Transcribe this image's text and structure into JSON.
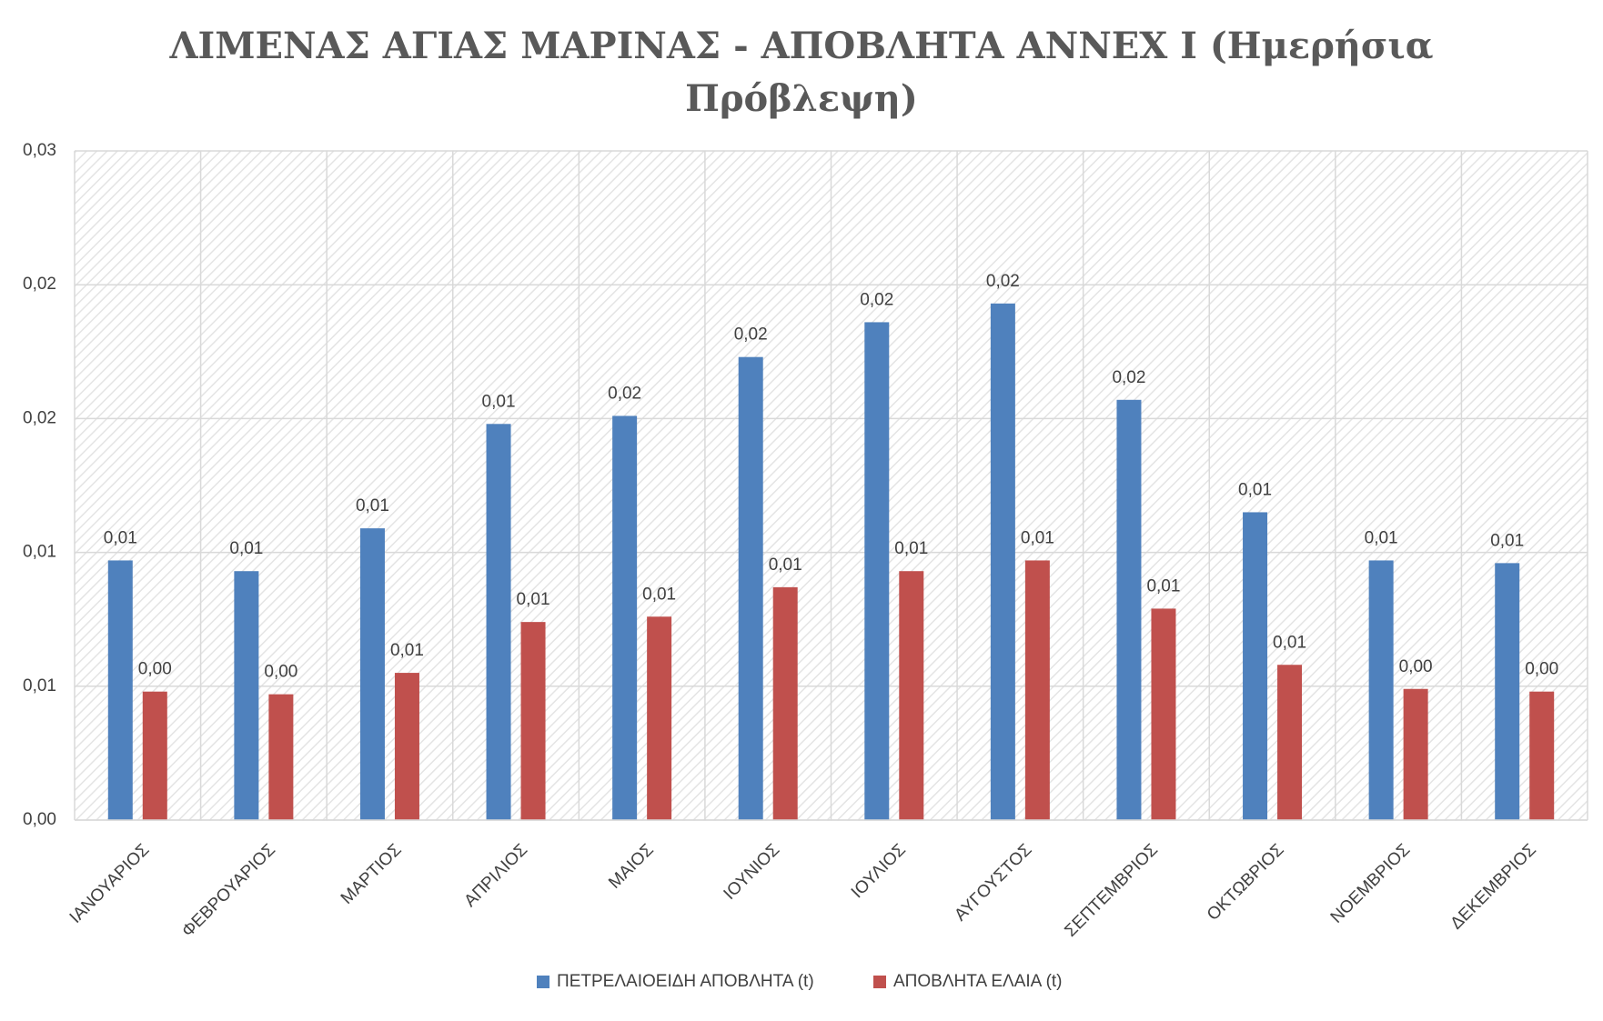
{
  "chart_data": {
    "type": "bar",
    "title": "ΛΙΜΕΝΑΣ ΑΓΙΑΣ ΜΑΡΙΝΑΣ - ΑΠΟΒΛΗΤΑ ΑΝΝΕΧ Ι (Ημερήσια Πρόβλεψη)",
    "categories": [
      "ΙΑΝΟΥΑΡΙΟΣ",
      "ΦΕΒΡΟΥΑΡΙΟΣ",
      "ΜΑΡΤΙΟΣ",
      "ΑΠΡΙΛΙΟΣ",
      "ΜΑΙΟΣ",
      "ΙΟΥΝΙΟΣ",
      "ΙΟΥΛΙΟΣ",
      "ΑΥΓΟΥΣΤΟΣ",
      "ΣΕΠΤΕΜΒΡΙΟΣ",
      "ΟΚΤΩΒΡΙΟΣ",
      "ΝΟΕΜΒΡΙΟΣ",
      "ΔΕΚΕΜΒΡΙΟΣ"
    ],
    "series": [
      {
        "name": "ΠΕΤΡΕΛΑΙΟΕΙΔΗ ΑΠΟΒΛΗΤΑ (t)",
        "color": "#4f81bd",
        "values": [
          0.0097,
          0.0093,
          0.0109,
          0.0148,
          0.0151,
          0.0173,
          0.0186,
          0.0193,
          0.0157,
          0.0115,
          0.0097,
          0.0096
        ],
        "value_labels": [
          "0,01",
          "0,01",
          "0,01",
          "0,01",
          "0,02",
          "0,02",
          "0,02",
          "0,02",
          "0,02",
          "0,01",
          "0,01",
          "0,01"
        ]
      },
      {
        "name": "ΑΠΟΒΛΗΤΑ ΕΛΑΙΑ (t)",
        "color": "#c0504d",
        "values": [
          0.0048,
          0.0047,
          0.0055,
          0.0074,
          0.0076,
          0.0087,
          0.0093,
          0.0097,
          0.0079,
          0.0058,
          0.0049,
          0.0048
        ],
        "value_labels": [
          "0,00",
          "0,00",
          "0,01",
          "0,01",
          "0,01",
          "0,01",
          "0,01",
          "0,01",
          "0,01",
          "0,01",
          "0,00",
          "0,00"
        ]
      }
    ],
    "ylim": [
      0,
      0.025
    ],
    "yticks": [
      {
        "value": 0,
        "label": "0,00"
      },
      {
        "value": 0.005,
        "label": "0,01"
      },
      {
        "value": 0.01,
        "label": "0,01"
      },
      {
        "value": 0.015,
        "label": "0,02"
      },
      {
        "value": 0.02,
        "label": "0,02"
      },
      {
        "value": 0.025,
        "label": "0,03"
      }
    ],
    "grid": true,
    "legend": "bottom"
  }
}
